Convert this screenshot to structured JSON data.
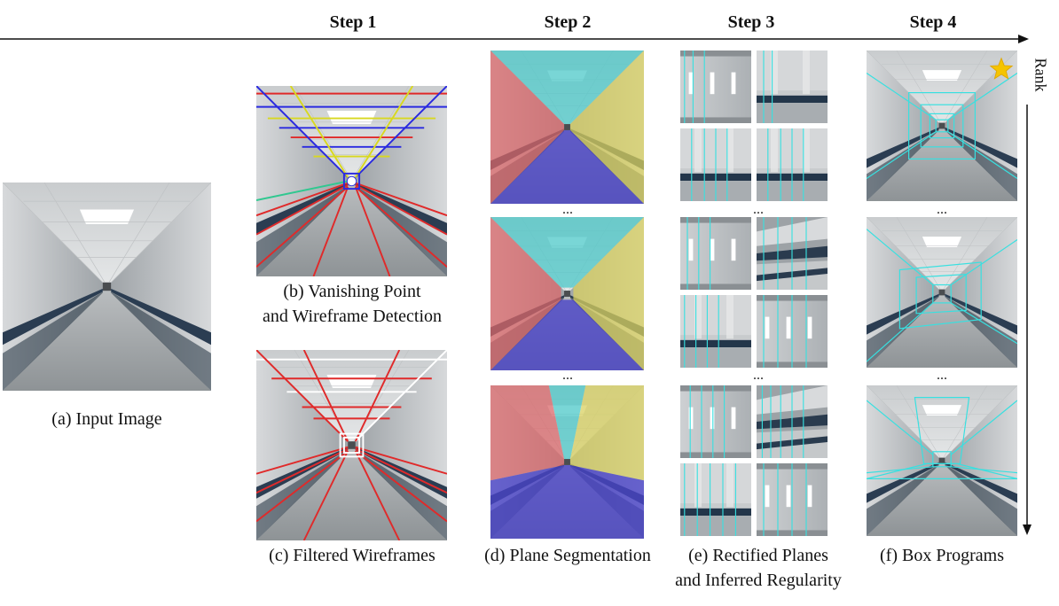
{
  "steps": [
    "Step 1",
    "Step 2",
    "Step 3",
    "Step 4"
  ],
  "rank_label": "Rank",
  "captions": {
    "a": "(a) Input Image",
    "b_line1": "(b) Vanishing Point",
    "b_line2": "and Wireframe Detection",
    "c": "(c) Filtered Wireframes",
    "d": "(d) Plane Segmentation",
    "e_line1": "(e) Rectified Planes",
    "e_line2": "and Inferred Regularity",
    "f": "(f) Box Programs"
  },
  "ellipsis": "...",
  "colors": {
    "wire_red": "#e02a2a",
    "wire_blue": "#2a2ae0",
    "plane_red": "#d9676a",
    "plane_cyan": "#4cc8c8",
    "plane_yellow": "#d8d060",
    "plane_blue": "#4a44c8",
    "box_cyan": "#38e0e0",
    "star": "#f5c400"
  },
  "icons": [
    "star-icon",
    "timeline-arrow",
    "rank-arrow"
  ]
}
